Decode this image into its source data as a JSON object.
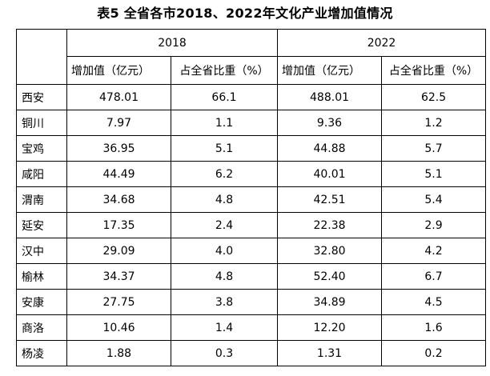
{
  "caption": "表5 全省各市2018、2022年文化产业增加值情况",
  "years": [
    "2018",
    "2022"
  ],
  "sub_headers": [
    "增加值（亿元）",
    "占全省比重（%）",
    "增加值（亿元）",
    "占全省比重（%）"
  ],
  "rows": [
    {
      "region": "西安",
      "v2018": "478.01",
      "s2018": "66.1",
      "v2022": "488.01",
      "s2022": "62.5"
    },
    {
      "region": "铜川",
      "v2018": "7.97",
      "s2018": "1.1",
      "v2022": "9.36",
      "s2022": "1.2"
    },
    {
      "region": "宝鸡",
      "v2018": "36.95",
      "s2018": "5.1",
      "v2022": "44.88",
      "s2022": "5.7"
    },
    {
      "region": "咸阳",
      "v2018": "44.49",
      "s2018": "6.2",
      "v2022": "40.01",
      "s2022": "5.1"
    },
    {
      "region": "渭南",
      "v2018": "34.68",
      "s2018": "4.8",
      "v2022": "42.51",
      "s2022": "5.4"
    },
    {
      "region": "延安",
      "v2018": "17.35",
      "s2018": "2.4",
      "v2022": "22.38",
      "s2022": "2.9"
    },
    {
      "region": "汉中",
      "v2018": "29.09",
      "s2018": "4.0",
      "v2022": "32.80",
      "s2022": "4.2"
    },
    {
      "region": "榆林",
      "v2018": "34.37",
      "s2018": "4.8",
      "v2022": "52.40",
      "s2022": "6.7"
    },
    {
      "region": "安康",
      "v2018": "27.75",
      "s2018": "3.8",
      "v2022": "34.89",
      "s2022": "4.5"
    },
    {
      "region": "商洛",
      "v2018": "10.46",
      "s2018": "1.4",
      "v2022": "12.20",
      "s2022": "1.6"
    },
    {
      "region": "杨凌",
      "v2018": "1.88",
      "s2018": "0.3",
      "v2022": "1.31",
      "s2022": "0.2"
    }
  ]
}
